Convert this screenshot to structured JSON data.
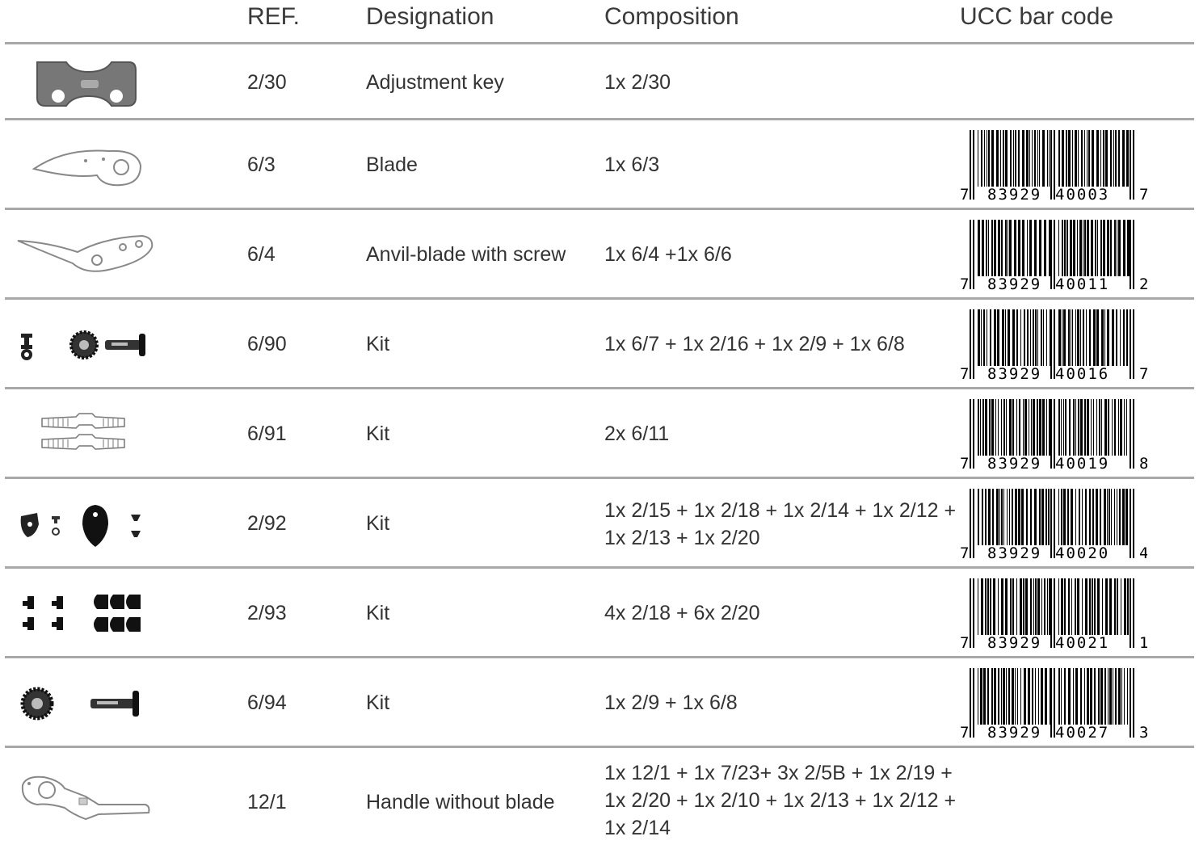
{
  "header": {
    "ref": "REF.",
    "designation": "Designation",
    "composition": "Composition",
    "barcode": "UCC bar code"
  },
  "rows": [
    {
      "icon": "adjustment-key-icon",
      "ref": "2/30",
      "designation": "Adjustment key",
      "composition": "1x 2/30",
      "barcode": null
    },
    {
      "icon": "blade-icon",
      "ref": "6/3",
      "designation": "Blade",
      "composition": "1x 6/3",
      "barcode": {
        "left": "7",
        "mid1": "83929",
        "mid2": "40003",
        "right": "7"
      }
    },
    {
      "icon": "anvil-blade-icon",
      "ref": "6/4",
      "designation": "Anvil-blade with screw",
      "composition": "1x 6/4 +1x 6/6",
      "barcode": {
        "left": "7",
        "mid1": "83929",
        "mid2": "40011",
        "right": "2"
      }
    },
    {
      "icon": "bolt-kit-icon",
      "ref": "6/90",
      "designation": "Kit",
      "composition": "1x 6/7 + 1x 2/16 + 1x 2/9 + 1x 6/8",
      "barcode": {
        "left": "7",
        "mid1": "83929",
        "mid2": "40016",
        "right": "7"
      }
    },
    {
      "icon": "spring-kit-icon",
      "ref": "6/91",
      "designation": "Kit",
      "composition": "2x 6/11",
      "barcode": {
        "left": "7",
        "mid1": "83929",
        "mid2": "40019",
        "right": "8"
      }
    },
    {
      "icon": "catch-kit-icon",
      "ref": "2/92",
      "designation": "Kit",
      "composition": "1x 2/15 + 1x 2/18 + 1x 2/14 + 1x 2/12 + 1x 2/13 + 1x 2/20",
      "barcode": {
        "left": "7",
        "mid1": "83929",
        "mid2": "40020",
        "right": "4"
      }
    },
    {
      "icon": "buffer-kit-icon",
      "ref": "2/93",
      "designation": "Kit",
      "composition": "4x 2/18 + 6x 2/20",
      "barcode": {
        "left": "7",
        "mid1": "83929",
        "mid2": "40021",
        "right": "1"
      }
    },
    {
      "icon": "gear-bolt-kit-icon",
      "ref": "6/94",
      "designation": "Kit",
      "composition": "1x 2/9 + 1x 6/8",
      "barcode": {
        "left": "7",
        "mid1": "83929",
        "mid2": "40027",
        "right": "3"
      }
    },
    {
      "icon": "handle-icon",
      "ref": "12/1",
      "designation": "Handle without blade",
      "composition": "1x 12/1 + 1x 7/23+ 3x 2/5B + 1x 2/19 + 1x 2/20 + 1x 2/10 + 1x 2/13 + 1x 2/12 + 1x 2/14",
      "barcode": null
    }
  ]
}
